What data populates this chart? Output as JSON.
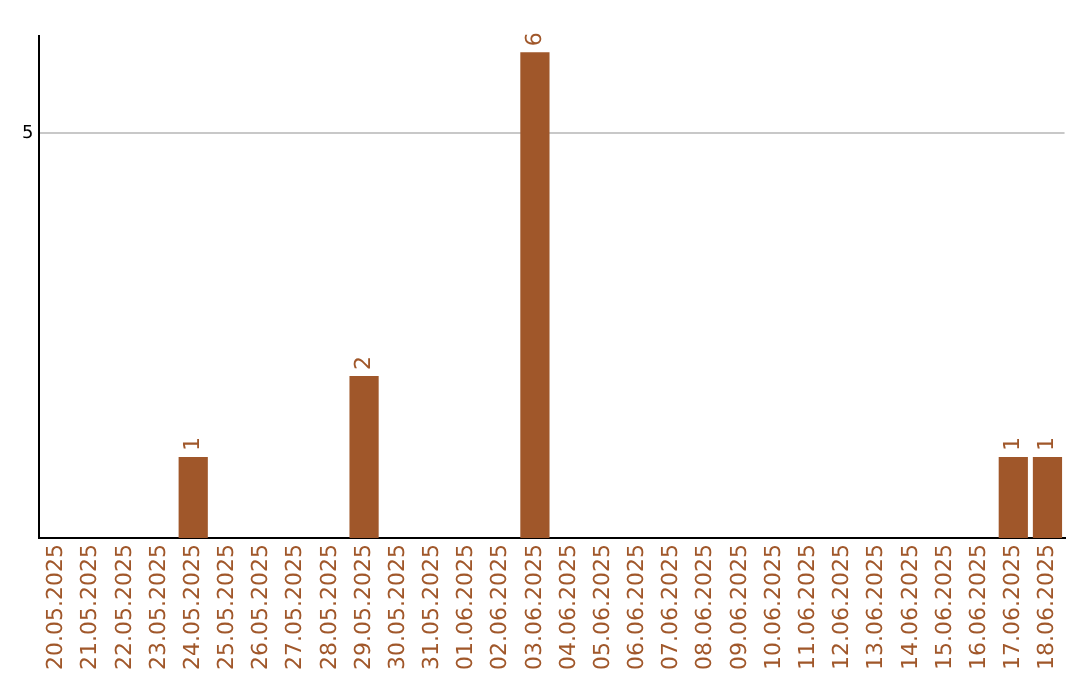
{
  "chart_data": {
    "type": "bar",
    "categories": [
      "20.05.2025",
      "21.05.2025",
      "22.05.2025",
      "23.05.2025",
      "24.05.2025",
      "25.05.2025",
      "26.05.2025",
      "27.05.2025",
      "28.05.2025",
      "29.05.2025",
      "30.05.2025",
      "31.05.2025",
      "01.06.2025",
      "02.06.2025",
      "03.06.2025",
      "04.06.2025",
      "05.06.2025",
      "06.06.2025",
      "07.06.2025",
      "08.06.2025",
      "09.06.2025",
      "10.06.2025",
      "11.06.2025",
      "12.06.2025",
      "13.06.2025",
      "14.06.2025",
      "15.06.2025",
      "16.06.2025",
      "17.06.2025",
      "18.06.2025"
    ],
    "values": [
      0,
      0,
      0,
      0,
      1,
      0,
      0,
      0,
      0,
      2,
      0,
      0,
      0,
      0,
      6,
      0,
      0,
      0,
      0,
      0,
      0,
      0,
      0,
      0,
      0,
      0,
      0,
      0,
      1,
      1
    ],
    "value_labels": [
      null,
      null,
      null,
      null,
      "1",
      null,
      null,
      null,
      null,
      "2",
      null,
      null,
      null,
      null,
      "6",
      null,
      null,
      null,
      null,
      null,
      null,
      null,
      null,
      null,
      null,
      null,
      null,
      null,
      "1",
      "1"
    ],
    "color": "#a0572a",
    "ylim": [
      0,
      6.2
    ],
    "yticks": [
      5
    ],
    "grid": "y"
  }
}
